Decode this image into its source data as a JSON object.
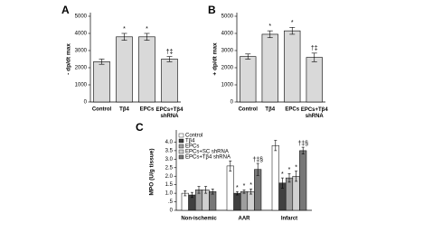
{
  "chart_data": [
    {
      "type": "bar",
      "panel_label": "A",
      "y_label": "- dp/dt max",
      "categories": [
        "Control",
        "Tβ4",
        "EPCs",
        "EPCs+Tβ4 shRNA"
      ],
      "values": [
        2350,
        3800,
        3800,
        2500
      ],
      "errors": [
        150,
        200,
        200,
        150
      ],
      "annotations": [
        null,
        "*",
        "*",
        "†‡"
      ],
      "color": "#d9d9d9",
      "ylim": [
        0,
        5000
      ],
      "yticks": [
        0,
        1000,
        2000,
        3000,
        4000,
        5000
      ]
    },
    {
      "type": "bar",
      "panel_label": "B",
      "y_label": "+ dp/dt max",
      "categories": [
        "Control",
        "Tβ4",
        "EPCs",
        "EPCs+Tβ4 shRNA"
      ],
      "values": [
        2650,
        3950,
        4150,
        2600
      ],
      "errors": [
        150,
        200,
        200,
        250
      ],
      "annotations": [
        null,
        "*",
        "*",
        "†‡"
      ],
      "color": "#d9d9d9",
      "ylim": [
        0,
        5000
      ],
      "yticks": [
        0,
        1000,
        2000,
        3000,
        4000,
        5000
      ]
    },
    {
      "type": "grouped_bar",
      "panel_label": "C",
      "y_label": "MPO (U/g tissue)",
      "categories": [
        "Non-ischemic",
        "AAR",
        "Infarct"
      ],
      "series": [
        {
          "name": "Control",
          "color": "#ffffff",
          "values": [
            1.0,
            2.6,
            3.8
          ],
          "errors": [
            0.15,
            0.3,
            0.3
          ],
          "annotations": [
            null,
            null,
            null
          ]
        },
        {
          "name": "Tβ4",
          "color": "#404040",
          "values": [
            0.9,
            1.0,
            1.6
          ],
          "errors": [
            0.15,
            0.1,
            0.3
          ],
          "annotations": [
            null,
            "*",
            "*"
          ]
        },
        {
          "name": "EPCs",
          "color": "#9e9e9e",
          "values": [
            1.2,
            1.1,
            1.9
          ],
          "errors": [
            0.2,
            0.1,
            0.25
          ],
          "annotations": [
            null,
            "*",
            "*"
          ]
        },
        {
          "name": "EPCs+SC shRNA",
          "color": "#d0d0d0",
          "values": [
            1.2,
            1.1,
            2.0
          ],
          "errors": [
            0.2,
            0.15,
            0.3
          ],
          "annotations": [
            null,
            "*",
            "*"
          ]
        },
        {
          "name": "EPCs+Tβ4 shRNA",
          "color": "#777777",
          "values": [
            1.1,
            2.4,
            3.5
          ],
          "errors": [
            0.15,
            0.35,
            0.2
          ],
          "annotations": [
            null,
            "†‡§",
            "†‡§"
          ]
        }
      ],
      "ylim": [
        0,
        4.5
      ],
      "yticks": [
        0,
        {
          "value": 0.5,
          "label": ".5"
        },
        {
          "value": 1,
          "label": "1.0"
        },
        {
          "value": 1.5,
          "label": "1.5"
        },
        {
          "value": 2,
          "label": "2.0"
        },
        {
          "value": 2.5,
          "label": "2.5"
        },
        {
          "value": 3,
          "label": "3.0"
        },
        {
          "value": 3.5,
          "label": "3.5"
        },
        {
          "value": 4,
          "label": "4.0"
        }
      ]
    }
  ]
}
